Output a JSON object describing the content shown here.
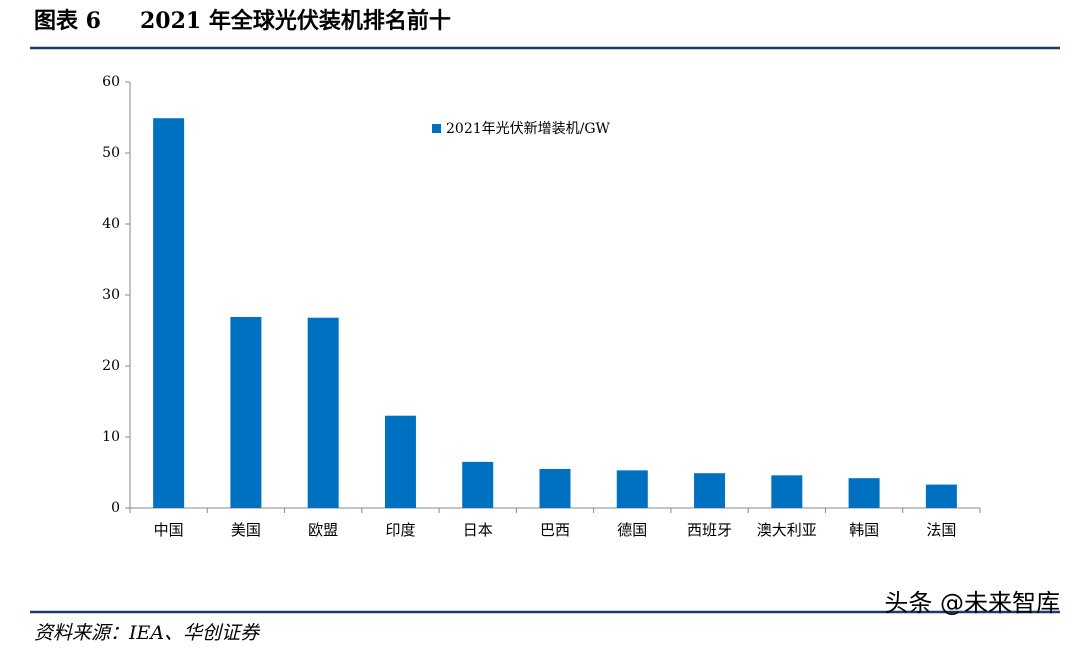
{
  "chart_data": {
    "type": "bar",
    "figure_label": "图表 6",
    "title": "2021 年全球光伏装机排名前十",
    "categories": [
      "中国",
      "美国",
      "欧盟",
      "印度",
      "日本",
      "巴西",
      "德国",
      "西班牙",
      "澳大利亚",
      "韩国",
      "法国"
    ],
    "series": [
      {
        "name": "2021年光伏新增装机/GW",
        "color": "#0070c0",
        "values": [
          54.9,
          26.9,
          26.8,
          13,
          6.5,
          5.5,
          5.3,
          4.9,
          4.6,
          4.2,
          3.3
        ]
      }
    ],
    "ylim": [
      0,
      60
    ],
    "yticks": [
      0,
      10,
      20,
      30,
      40,
      50,
      60
    ],
    "source": "资料来源：IEA、华创证券",
    "watermark": "头条 @未来智库"
  }
}
